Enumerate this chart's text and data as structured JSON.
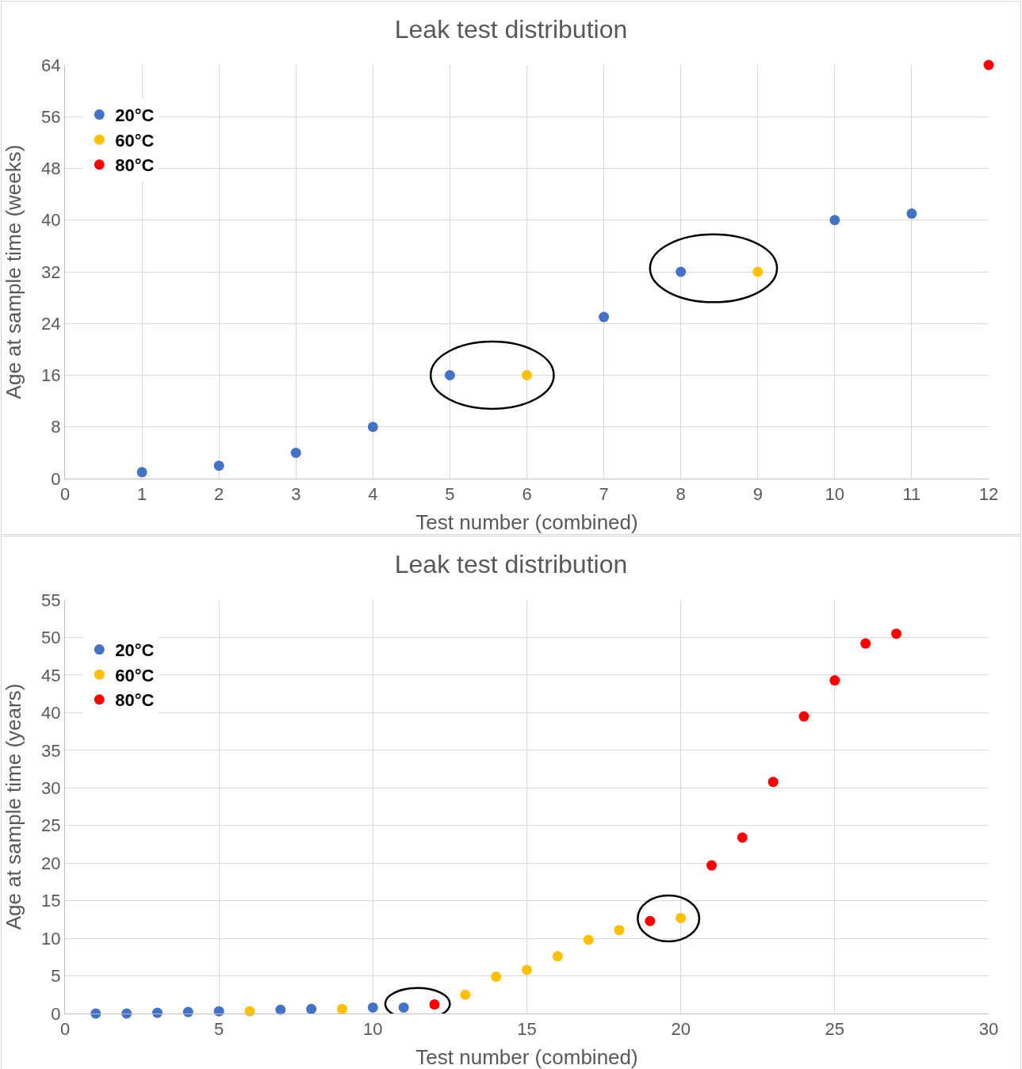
{
  "chart_data": [
    {
      "type": "scatter",
      "title": "Leak test distribution",
      "xlabel": "Test number (combined)",
      "ylabel": "Age at sample time (weeks)",
      "xlim": [
        0,
        12
      ],
      "xticks": [
        0,
        1,
        2,
        3,
        4,
        5,
        6,
        7,
        8,
        9,
        10,
        11,
        12
      ],
      "ylim": [
        0,
        64
      ],
      "yticks": [
        0,
        8,
        16,
        24,
        32,
        40,
        48,
        56,
        64
      ],
      "grid": true,
      "legend": "top left",
      "marker": "circle",
      "series": [
        {
          "name": "20°C",
          "color": "#4472c4",
          "x": [
            1,
            2,
            3,
            4,
            5,
            7,
            8,
            10,
            11
          ],
          "values": [
            1,
            2,
            4,
            8,
            16,
            25,
            32,
            40,
            41
          ]
        },
        {
          "name": "60°C",
          "color": "#ffc000",
          "x": [
            6,
            9
          ],
          "values": [
            16,
            32
          ]
        },
        {
          "name": "80°C",
          "color": "#ff0000",
          "x": [
            12
          ],
          "values": [
            64
          ]
        }
      ]
    },
    {
      "type": "scatter",
      "title": "Leak test distribution",
      "xlabel": "Test number (combined)",
      "ylabel": "Age at sample time (years)",
      "xlim": [
        0,
        30
      ],
      "xticks": [
        0,
        5,
        10,
        15,
        20,
        25,
        30
      ],
      "ylim": [
        0,
        55
      ],
      "yticks": [
        0,
        5,
        10,
        15,
        20,
        25,
        30,
        35,
        40,
        45,
        50,
        55
      ],
      "grid": true,
      "legend": "top left",
      "marker": "circle",
      "series": [
        {
          "name": "20°C",
          "color": "#4472c4",
          "x": [
            1,
            2,
            3,
            4,
            5,
            7,
            8,
            10,
            11
          ],
          "values": [
            0,
            0,
            0.1,
            0.2,
            0.3,
            0.5,
            0.6,
            0.8,
            0.8
          ]
        },
        {
          "name": "60°C",
          "color": "#ffc000",
          "x": [
            6,
            9,
            13,
            14,
            15,
            16,
            17,
            18,
            20
          ],
          "values": [
            0.3,
            0.6,
            2.5,
            4.9,
            5.8,
            7.6,
            9.8,
            11.1,
            12.7
          ]
        },
        {
          "name": "80°C",
          "color": "#ff0000",
          "x": [
            12,
            19,
            21,
            22,
            23,
            24,
            25,
            26,
            27
          ],
          "values": [
            1.2,
            12.3,
            19.7,
            23.4,
            30.8,
            39.5,
            44.3,
            49.2,
            50.5
          ]
        }
      ]
    }
  ]
}
